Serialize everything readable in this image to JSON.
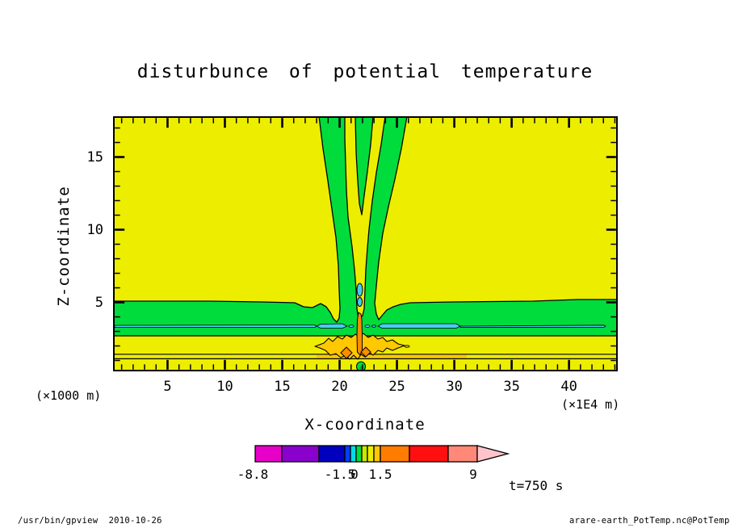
{
  "title": "disturbunce  of  potential  temperature",
  "axes": {
    "x_label": "X-coordinate",
    "x_unit": "(×1E4 m)",
    "x_ticks": [
      "5",
      "10",
      "15",
      "20",
      "25",
      "30",
      "35",
      "40"
    ],
    "y_label": "Z-coordinate",
    "y_unit": "(×1000 m)",
    "y_ticks": [
      "5",
      "10",
      "15"
    ]
  },
  "annotations": {
    "time_label": "t=750 s"
  },
  "footer": {
    "left": "/usr/bin/gpview  2010-10-26",
    "right": "arare-earth_PotTemp.nc@PotTemp"
  },
  "palette": {
    "bg": "#ffffff",
    "field_yellow": "#EDED00",
    "field_green": "#00DC3C",
    "field_green_dark": "#00A830",
    "field_cyan": "#48CCEE",
    "field_gold": "#FFC800",
    "field_orange": "#FF8C00",
    "contour_line": "#000000",
    "cb_arrow": "#FFC4CC"
  },
  "chart_data": {
    "type": "heatmap",
    "subtype": "filled-contour",
    "title": "disturbunce of potential temperature",
    "xlabel": "X-coordinate",
    "ylabel": "Z-coordinate",
    "x_unit": "(×1E4 m)",
    "y_unit": "(×1000 m)",
    "xlim": [
      0,
      44
    ],
    "ylim": [
      0.25,
      17.75
    ],
    "x_ticks_major": [
      5,
      10,
      15,
      20,
      25,
      30,
      35,
      40
    ],
    "y_ticks_major": [
      5,
      10,
      15
    ],
    "grid": false,
    "time": "t=750 s",
    "colorbar": {
      "labels": [
        "-8.8",
        "-1.5",
        "0",
        "1.5",
        "9"
      ],
      "levels_approx": [
        -8.8,
        -6.7,
        -3.8,
        -1.5,
        -1.0,
        -0.5,
        0,
        0.5,
        1.0,
        1.5,
        3.8,
        6.7,
        9
      ],
      "colors": [
        "#E600C8",
        "#8A00CC",
        "#0000BE",
        "#0040FF",
        "#00DCE8",
        "#00DC3C",
        "#C8E800",
        "#EDED00",
        "#FFC800",
        "#FF7C00",
        "#FF0F0F",
        "#FF8878"
      ],
      "arrow_color": "#FFC4CC",
      "position": "bottom"
    },
    "features": [
      "uniform yellow field (weak positive disturbance) over most of the domain",
      "green horizontal layer between z~2.8 and z~5 (x1000 m) spanning the full width",
      "thin cyan stripe at z~3.3 embedded in the green layer, thicker near x~19 and x~25-30",
      "green plume: three columns at top (x~18-20.5, 21-22.5, 23.5-25.5) converging downward into a single stem near x~22, z~5",
      "updraft core at x~22 with small cyan patches at z~4.5-6",
      "narrow dark-orange column at x~22 from z~1 to z~4",
      "gold starburst region around x~22, z~1.5-2.5 with two darker orange diamond cores",
      "thin gold horizontal band near z~1.1-1.35 across the full width, bounded by contour lines",
      "small green spot at x~22 adjacent to the bottom boundary"
    ]
  }
}
